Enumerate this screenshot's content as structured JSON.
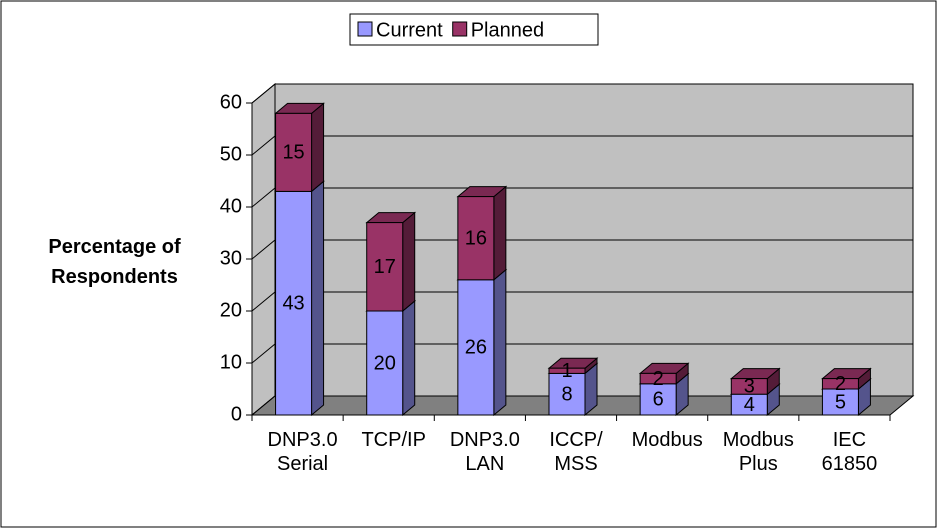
{
  "chart_data": {
    "type": "bar3d_stacked",
    "y_axis_label": "Percentage of Respondents",
    "categories": [
      [
        "DNP3.0",
        "Serial"
      ],
      [
        "TCP/IP"
      ],
      [
        "DNP3.0",
        "LAN"
      ],
      [
        "ICCP/",
        "MSS"
      ],
      [
        "Modbus"
      ],
      [
        "Modbus",
        "Plus"
      ],
      [
        "IEC",
        "61850"
      ]
    ],
    "series": [
      {
        "name": "Current",
        "color": "#9999ff",
        "values": [
          43,
          20,
          26,
          8,
          6,
          4,
          5
        ]
      },
      {
        "name": "Planned",
        "color": "#993366",
        "values": [
          15,
          17,
          16,
          1,
          2,
          3,
          2
        ]
      }
    ],
    "ylim": [
      0,
      60
    ],
    "yticks": [
      0,
      10,
      20,
      30,
      40,
      50,
      60
    ],
    "grid": true,
    "legend": "top"
  }
}
